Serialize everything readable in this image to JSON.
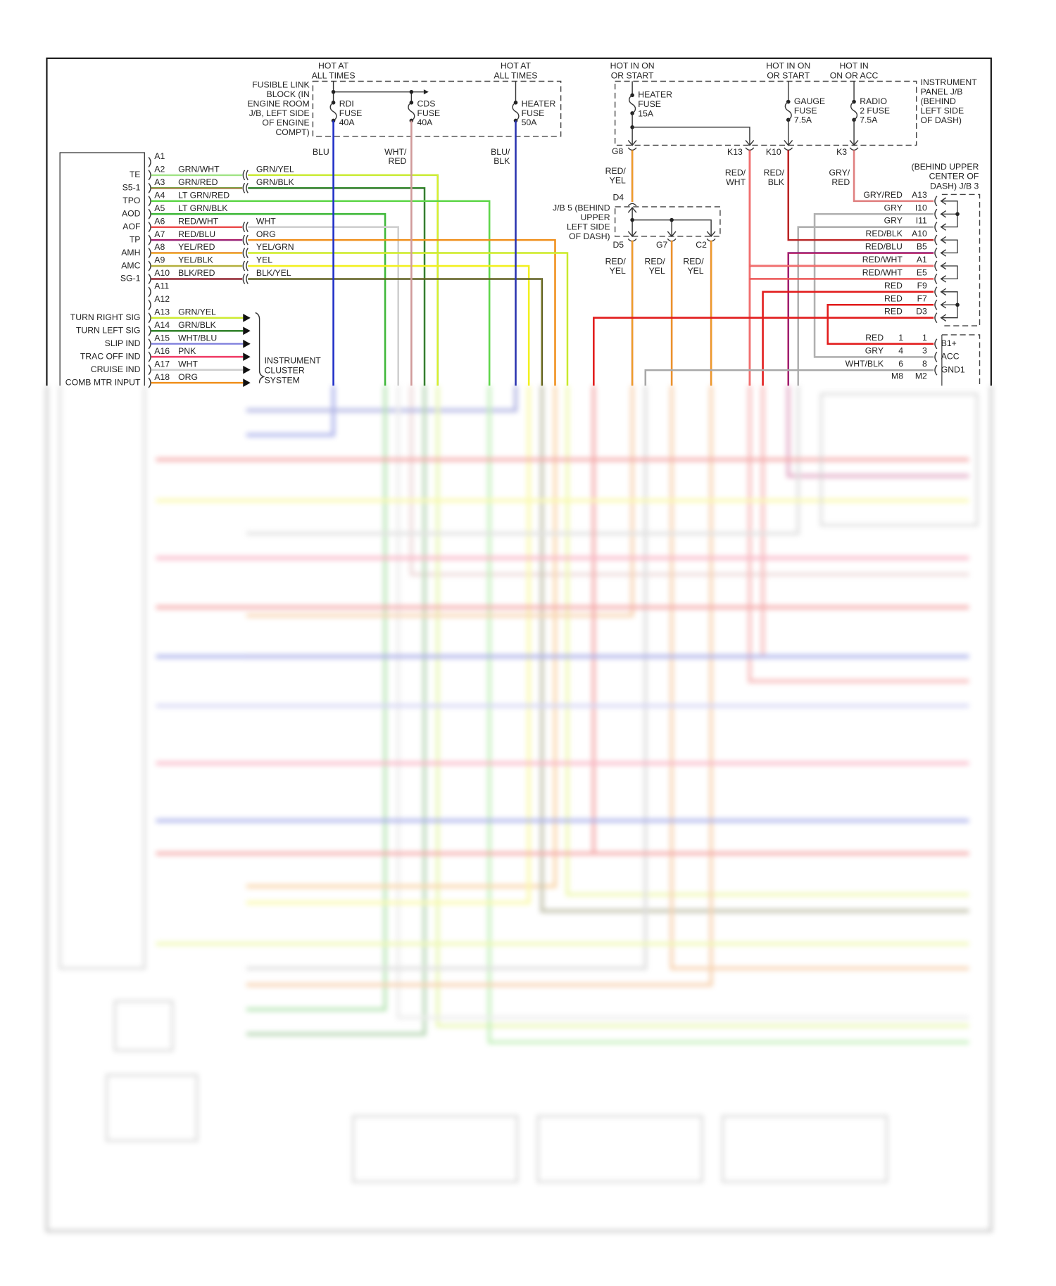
{
  "ecu": {
    "pins": [
      {
        "pin": "A1",
        "signal": "",
        "wire": "",
        "mate": ""
      },
      {
        "pin": "A2",
        "signal": "TE",
        "wire": "GRN/WHT",
        "mate": "GRN/YEL"
      },
      {
        "pin": "A3",
        "signal": "S5-1",
        "wire": "GRN/RED",
        "mate": "GRN/BLK"
      },
      {
        "pin": "A4",
        "signal": "TPO",
        "wire": "LT GRN/RED",
        "mate": ""
      },
      {
        "pin": "A5",
        "signal": "AOD",
        "wire": "LT GRN/BLK",
        "mate": ""
      },
      {
        "pin": "A6",
        "signal": "AOF",
        "wire": "RED/WHT",
        "mate": "WHT"
      },
      {
        "pin": "A7",
        "signal": "TP",
        "wire": "RED/BLU",
        "mate": "ORG"
      },
      {
        "pin": "A8",
        "signal": "AMH",
        "wire": "YEL/RED",
        "mate": "YEL/GRN"
      },
      {
        "pin": "A9",
        "signal": "AMC",
        "wire": "YEL/BLK",
        "mate": "YEL"
      },
      {
        "pin": "A10",
        "signal": "SG-1",
        "wire": "BLK/RED",
        "mate": "BLK/YEL"
      },
      {
        "pin": "A11",
        "signal": "",
        "wire": "",
        "mate": ""
      },
      {
        "pin": "A12",
        "signal": "",
        "wire": "",
        "mate": ""
      },
      {
        "pin": "A13",
        "signal": "TURN RIGHT SIG",
        "wire": "GRN/YEL",
        "mate": ""
      },
      {
        "pin": "A14",
        "signal": "TURN LEFT SIG",
        "wire": "GRN/BLK",
        "mate": ""
      },
      {
        "pin": "A15",
        "signal": "SLIP IND",
        "wire": "WHT/BLU",
        "mate": ""
      },
      {
        "pin": "A16",
        "signal": "TRAC OFF IND",
        "wire": "PNK",
        "mate": ""
      },
      {
        "pin": "A17",
        "signal": "CRUISE IND",
        "wire": "WHT",
        "mate": ""
      },
      {
        "pin": "A18",
        "signal": "COMB MTR INPUT",
        "wire": "ORG",
        "mate": ""
      }
    ],
    "cluster_label": [
      "INSTRUMENT",
      "CLUSTER",
      "SYSTEM"
    ]
  },
  "fusible_link": {
    "label": [
      "FUSIBLE LINK",
      "BLOCK (IN",
      "ENGINE ROOM",
      "J/B, LEFT SIDE",
      "OF ENGINE",
      "COMPT)"
    ],
    "hot1": [
      "HOT AT",
      "ALL TIMES"
    ],
    "hot2": [
      "HOT AT",
      "ALL TIMES"
    ],
    "fuses": [
      {
        "lines": [
          "RDI",
          "FUSE",
          "40A"
        ],
        "wire": "BLU",
        "wire_lines": [
          "BLU"
        ]
      },
      {
        "lines": [
          "CDS",
          "FUSE",
          "40A"
        ],
        "wire": "WHT/RED",
        "wire_lines": [
          "WHT/",
          "RED"
        ]
      },
      {
        "lines": [
          "HEATER",
          "FUSE",
          "50A"
        ],
        "wire": "BLU/BLK",
        "wire_lines": [
          "BLU/",
          "BLK"
        ]
      }
    ]
  },
  "ip_jb": {
    "label": [
      "INSTRUMENT",
      "PANEL J/B",
      "(BEHIND",
      "LEFT SIDE",
      "OF DASH)"
    ],
    "hot": [
      [
        "HOT IN ON",
        "OR START"
      ],
      [
        "HOT IN ON",
        "OR START"
      ],
      [
        "HOT IN",
        "ON OR ACC"
      ]
    ],
    "fuses": [
      {
        "lines": [
          "HEATER",
          "FUSE",
          "15A"
        ]
      },
      {
        "lines": [
          "GAUGE",
          "FUSE",
          "7.5A"
        ]
      },
      {
        "lines": [
          "RADIO",
          "2 FUSE",
          "7.5A"
        ]
      }
    ],
    "connectors": [
      "G8",
      "K13",
      "K10",
      "K3"
    ],
    "wires": [
      [
        "RED/",
        "YEL"
      ],
      [
        "RED/",
        "WHT"
      ],
      [
        "RED/",
        "BLK"
      ],
      [
        "GRY/",
        "RED"
      ]
    ]
  },
  "jb5": {
    "label": [
      "J/B 5 (BEHIND",
      "UPPER",
      "LEFT SIDE",
      "OF DASH)"
    ],
    "input": "D4",
    "outputs": [
      "D5",
      "G7",
      "C2"
    ],
    "wires": [
      [
        "RED/",
        "YEL"
      ],
      [
        "RED/",
        "YEL"
      ],
      [
        "RED/",
        "YEL"
      ]
    ]
  },
  "jb3": {
    "label": [
      "(BEHIND UPPER",
      "CENTER OF",
      "DASH) J/B 3"
    ],
    "rows": [
      {
        "wire": "GRY/RED",
        "pin": "A13"
      },
      {
        "wire": "GRY",
        "pin": "I10"
      },
      {
        "wire": "GRY",
        "pin": "I11"
      },
      {
        "wire": "RED/BLK",
        "pin": "A10"
      },
      {
        "wire": "RED/BLU",
        "pin": "B5"
      },
      {
        "wire": "RED/WHT",
        "pin": "A1"
      },
      {
        "wire": "RED/WHT",
        "pin": "E5"
      },
      {
        "wire": "RED",
        "pin": "F9"
      },
      {
        "wire": "RED",
        "pin": "F7"
      },
      {
        "wire": "RED",
        "pin": "D3"
      }
    ]
  },
  "radio_conn": {
    "rows": [
      {
        "wire": "RED",
        "a": "1",
        "b": "1",
        "term": "B1+"
      },
      {
        "wire": "GRY",
        "a": "4",
        "b": "3",
        "term": "ACC"
      },
      {
        "wire": "WHT/BLK",
        "a": "6",
        "b": "8",
        "term": "GND1"
      }
    ],
    "ids": {
      "a": "M8",
      "b": "M2"
    }
  },
  "wire_colors": {
    "GRN/WHT": {
      "main": "#7ed957",
      "stripe": "#ffffff"
    },
    "GRN/YEL": {
      "main": "#b8e83a",
      "stripe": "#f0f020"
    },
    "GRN/RED": {
      "main": "#6fb04a",
      "stripe": "#d04030"
    },
    "GRN/BLK": {
      "main": "#3f9e36",
      "stripe": "#2a4a2a"
    },
    "LT GRN/RED": {
      "main": "#5fd64a",
      "stripe": "#5fd64a"
    },
    "LT GRN/BLK": {
      "main": "#3fb83a",
      "stripe": "#3fb83a"
    },
    "RED/WHT": {
      "main": "#e53535",
      "stripe": "#ffb0b0"
    },
    "RED/BLU": {
      "main": "#c8205a",
      "stripe": "#5020a0"
    },
    "RED/BLK": {
      "main": "#d82a2a",
      "stripe": "#802020"
    },
    "RED/YEL": {
      "main": "#e87a30",
      "stripe": "#f0c020"
    },
    "YEL/RED": {
      "main": "#f0c030",
      "stripe": "#e04020"
    },
    "YEL/BLK": {
      "main": "#d8d040",
      "stripe": "#808040"
    },
    "YEL/GRN": {
      "main": "#e0f030",
      "stripe": "#a0e030"
    },
    "YEL": {
      "main": "#f2f020",
      "stripe": "#f2f020"
    },
    "BLK/RED": {
      "main": "#802030",
      "stripe": "#c03030"
    },
    "BLK/YEL": {
      "main": "#4a4a20",
      "stripe": "#a0a020"
    },
    "WHT": {
      "main": "#cfcfcf",
      "stripe": "#cfcfcf"
    },
    "WHT/BLU": {
      "main": "#9a9ae8",
      "stripe": "#6a6ad0"
    },
    "WHT/RED": {
      "main": "#d09a9a",
      "stripe": "#d09a9a"
    },
    "WHT/BLK": {
      "main": "#a8a8a8",
      "stripe": "#a8a8a8"
    },
    "PNK": {
      "main": "#f0406a",
      "stripe": "#f0406a"
    },
    "ORG": {
      "main": "#f0901c",
      "stripe": "#f0901c"
    },
    "BLU": {
      "main": "#2030c8",
      "stripe": "#2030c8"
    },
    "BLU/BLK": {
      "main": "#2a34b0",
      "stripe": "#2a34b0"
    },
    "GRY": {
      "main": "#b0b0b0",
      "stripe": "#b0b0b0"
    },
    "GRY/RED": {
      "main": "#e08080",
      "stripe": "#e08080"
    },
    "RED": {
      "main": "#e21c1c",
      "stripe": "#e21c1c"
    }
  }
}
